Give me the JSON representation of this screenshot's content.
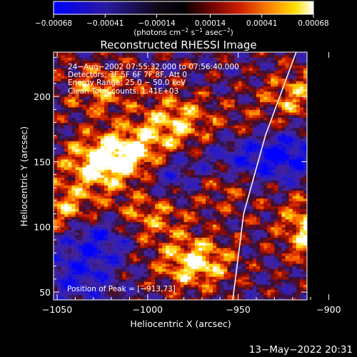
{
  "chart_data": {
    "type": "heatmap",
    "title": "Reconstructed RHESSI Image",
    "xlabel": "Heliocentric X (arcsec)",
    "ylabel": "Heliocentric Y (arcsec)",
    "xlim": [
      -1052,
      -912
    ],
    "ylim": [
      44,
      234
    ],
    "x_ticks": [
      -1050,
      -1000,
      -950,
      -900
    ],
    "x_tick_labels": [
      "−1050",
      "−1000",
      "−950",
      "−900"
    ],
    "y_ticks": [
      50,
      100,
      150,
      200
    ],
    "y_tick_labels": [
      "50",
      "100",
      "150",
      "200"
    ],
    "colorbar": {
      "ticks": [
        -0.00068,
        -0.00041,
        -0.00014,
        0.00014,
        0.00041,
        0.00068
      ],
      "tick_labels": [
        "−0.00068",
        "−0.00041",
        "−0.00014",
        "0.00014",
        "0.00041",
        "0.00068"
      ],
      "unit_label": "(photons cm",
      "unit_sup1": "−2",
      "unit_mid": " s",
      "unit_sup2": "−1",
      "unit_mid2": " asec",
      "unit_sup3": "−2",
      "unit_end": ")",
      "range": [
        -0.00068,
        0.00068
      ]
    },
    "colors": {
      "negative_extreme": "#0000ff",
      "negative": "#3c1ca0",
      "zero": "#000000",
      "positive_low": "#8c1010",
      "positive_mid": "#ff5a00",
      "positive_high": "#ffd400",
      "positive_extreme": "#ffffff"
    },
    "annotations": [
      "24−Aug−2002 07:55:32.000 to 07:56:40.000",
      "Detectors: 3F 5F 6F 7F 8F, Att 0",
      "Energy Range: 25.0 − 50.0 keV",
      "Clean     Total counts: 1.41E+03"
    ],
    "peak_label": "Position of Peak = [−913,73]",
    "limb_curve": [
      [
        -918,
        234
      ],
      [
        -935,
        170
      ],
      [
        -947,
        110
      ],
      [
        -953,
        44
      ]
    ],
    "hot_spots": [
      {
        "x": -1028,
        "y": 205,
        "value": 0.00041
      },
      {
        "x": -985,
        "y": 180,
        "value": 0.00055
      },
      {
        "x": -1008,
        "y": 155,
        "value": 0.0006
      },
      {
        "x": -1027,
        "y": 148,
        "value": 0.00068
      },
      {
        "x": -1045,
        "y": 112,
        "value": 0.0005
      },
      {
        "x": -1000,
        "y": 108,
        "value": 0.00045
      },
      {
        "x": -975,
        "y": 72,
        "value": 0.00068
      },
      {
        "x": -908,
        "y": 102,
        "value": 0.00062
      },
      {
        "x": -895,
        "y": 80,
        "value": 0.00065
      },
      {
        "x": -918,
        "y": 200,
        "value": 0.00045
      },
      {
        "x": -945,
        "y": 170,
        "value": 0.0003
      },
      {
        "x": -960,
        "y": 130,
        "value": 0.0003
      }
    ],
    "cold_spots": [
      {
        "x": -1030,
        "y": 92,
        "value": -0.0005
      },
      {
        "x": -925,
        "y": 155,
        "value": -0.00055
      },
      {
        "x": -990,
        "y": 138,
        "value": -0.0004
      },
      {
        "x": -950,
        "y": 155,
        "value": -0.00045
      },
      {
        "x": -1040,
        "y": 60,
        "value": -0.0004
      }
    ]
  },
  "footer": {
    "timestamp": "13−May−2022 20:31"
  }
}
